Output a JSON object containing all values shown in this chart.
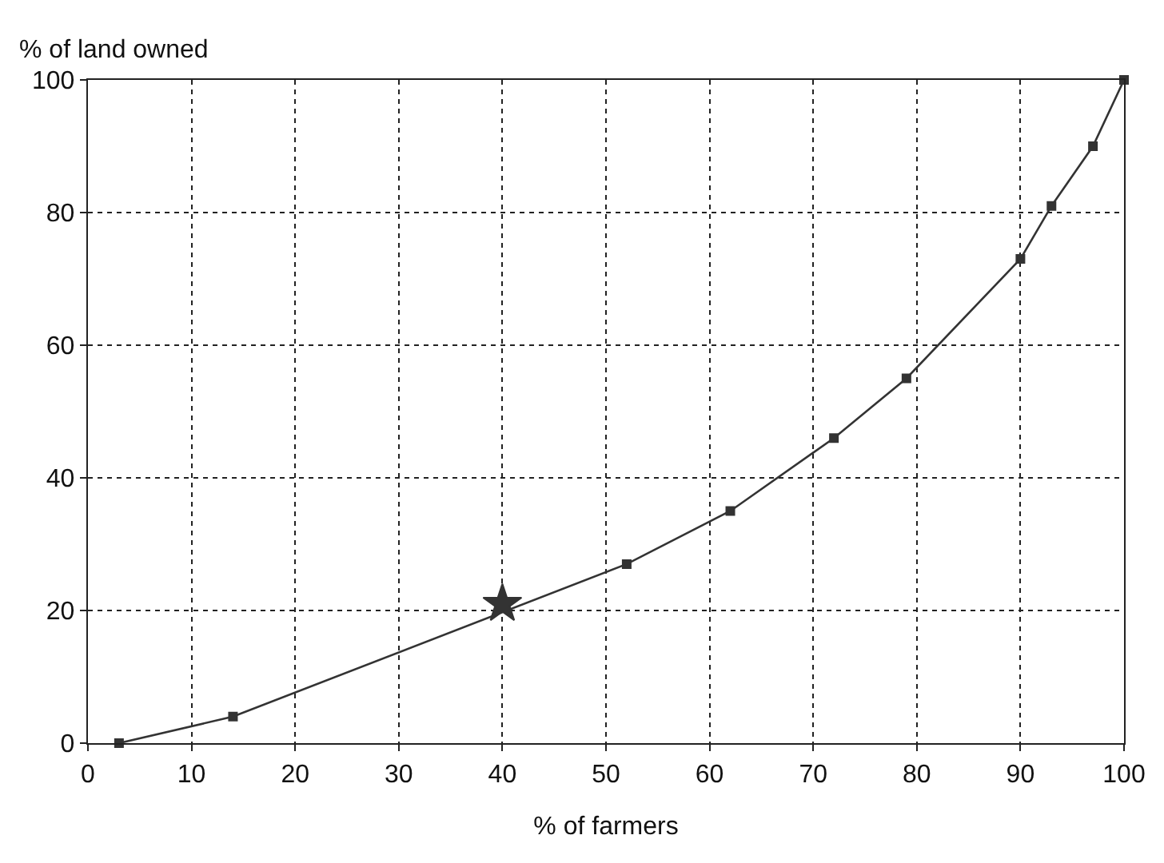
{
  "chart_data": {
    "type": "line",
    "xlabel": "% of farmers",
    "ylabel": "% of land owned",
    "xlim": [
      0,
      100
    ],
    "ylim": [
      0,
      100
    ],
    "xticks": [
      0,
      10,
      20,
      30,
      40,
      50,
      60,
      70,
      80,
      90,
      100
    ],
    "yticks": [
      0,
      20,
      40,
      60,
      80,
      100
    ],
    "grid": true,
    "marker": "square",
    "line_style": "solid",
    "series": [
      {
        "color": "#333333",
        "x": [
          3,
          14,
          52,
          62,
          72,
          79,
          90,
          93,
          97,
          100
        ],
        "values": [
          0,
          4,
          27,
          35,
          46,
          55,
          73,
          81,
          90,
          100
        ]
      },
      {
        "type": "scatter",
        "marker": "star",
        "color": "#333333",
        "x": [
          40
        ],
        "values": [
          21
        ]
      }
    ]
  }
}
